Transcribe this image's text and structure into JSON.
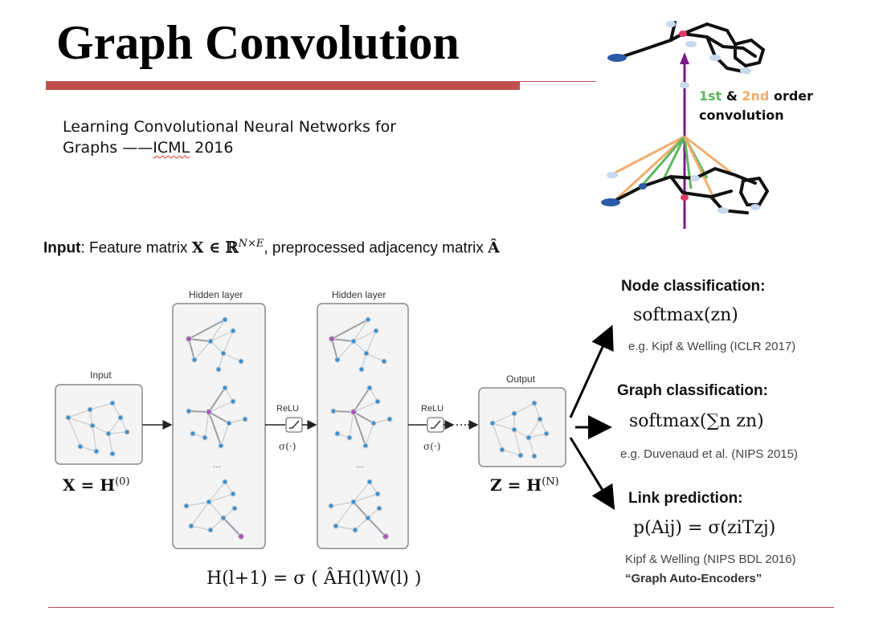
{
  "slide": {
    "title": "Graph Convolution",
    "subtitle_line1": "Learning Convolutional Neural Networks for",
    "subtitle_line2_a": "Graphs  ——",
    "subtitle_line2_b": "ICML",
    "subtitle_line2_c": " 2016"
  },
  "conv_label": {
    "part1": "1st",
    "part2": " & ",
    "part3": "2nd",
    "part4": " order",
    "line2": "convolution"
  },
  "input_line": {
    "bold": "Input",
    "text1": ": Feature matrix ",
    "math1": "X ∈ ℝ",
    "sup1": "N×E",
    "text2": ", preprocessed adjacency matrix ",
    "math2": "Â"
  },
  "diagram": {
    "input_label": "Input",
    "hidden_label_1": "Hidden layer",
    "hidden_label_2": "Hidden layer",
    "output_label": "Output",
    "relu_1": "ReLU",
    "relu_2": "ReLU",
    "sigma_1": "σ(·)",
    "sigma_2": "σ(·)",
    "ellipsis": "...",
    "x_formula": "X = H",
    "x_formula_sup": "(0)",
    "z_formula": "Z = H",
    "z_formula_sup": "(N)",
    "update_rule": "H(l+1) = σ ( ÂH(l)W(l) )"
  },
  "tasks": [
    {
      "heading": "Node classification:",
      "formula": "softmax(zn)",
      "note": "e.g. Kipf & Welling (ICLR 2017)"
    },
    {
      "heading": "Graph classification:",
      "formula": "softmax(∑n zn)",
      "note": "e.g. Duvenaud et al. (NIPS 2015)"
    },
    {
      "heading": "Link prediction:",
      "formula": "p(Aij) = σ(ziTzj)",
      "note": "Kipf & Welling (NIPS BDL 2016)",
      "note2": "“Graph Auto-Encoders”"
    }
  ],
  "colors": {
    "accent_red": "#c0504d",
    "node_blue": "#3a8fd0",
    "node_purple": "#a25ab3",
    "first_order": "#5cb85c",
    "second_order": "#f0ad6e",
    "axis_purple": "#7a1a8a"
  }
}
